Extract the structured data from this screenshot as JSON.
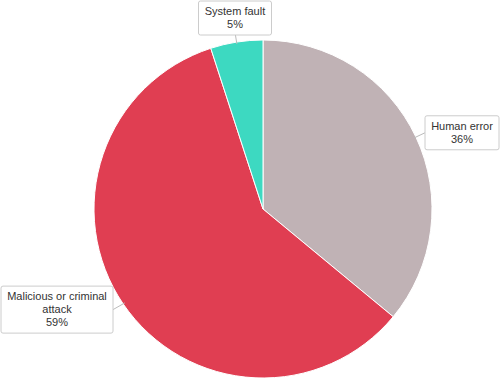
{
  "chart_data": {
    "type": "pie",
    "categories": [
      "Human error",
      "Malicious or criminal attack",
      "System fault"
    ],
    "values": [
      36,
      59,
      5
    ],
    "value_labels": [
      "36%",
      "59%",
      "5%"
    ],
    "colors": [
      "#c0b2b5",
      "#e03e52",
      "#3dd9c1"
    ],
    "data_labels": true
  }
}
